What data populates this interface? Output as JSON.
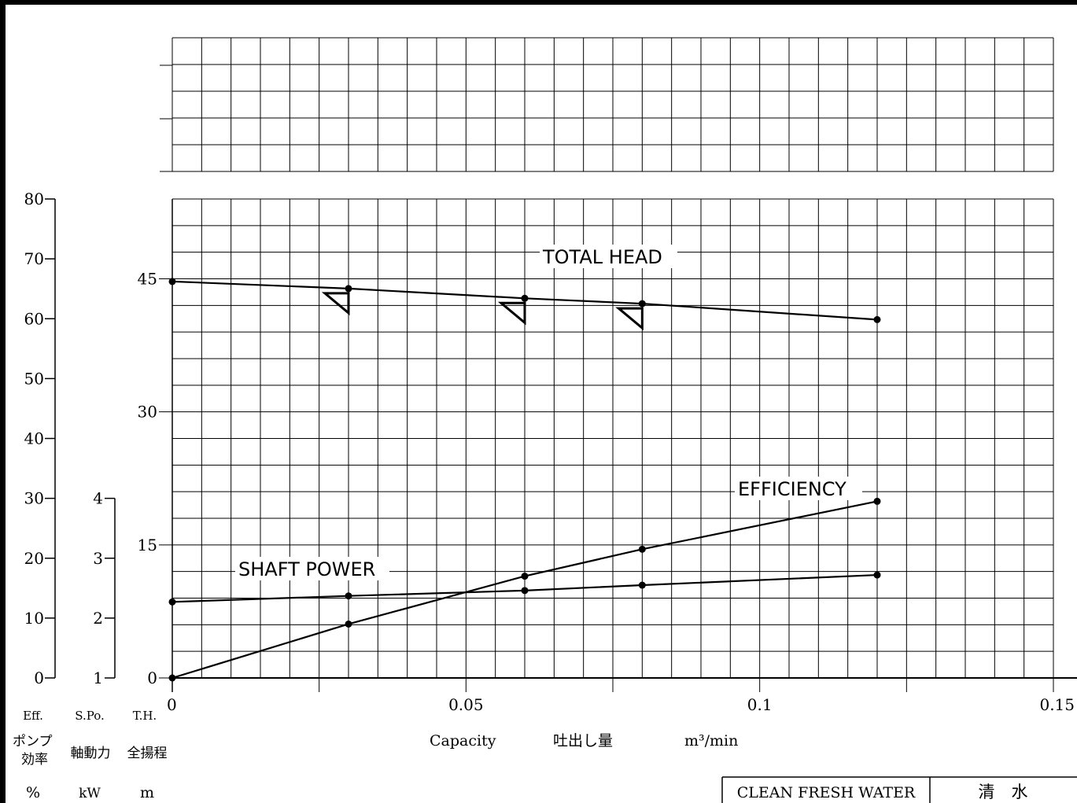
{
  "chart_data": {
    "type": "line",
    "x": [
      0,
      0.03,
      0.06,
      0.08,
      0.12
    ],
    "xlim": [
      0,
      0.15
    ],
    "x_ticks": [
      "0",
      "0.05",
      "0.1",
      "0.15"
    ],
    "axes": {
      "head": {
        "abbr": "T.H.",
        "name": "全揚程",
        "unit": "m",
        "ylim": [
          0,
          54
        ],
        "ticks": [
          "0",
          "15",
          "30",
          "45"
        ]
      },
      "power": {
        "abbr": "S.Po.",
        "name": "軸動力",
        "unit": "kW",
        "ylim": [
          1,
          4
        ],
        "ticks": [
          "1",
          "2",
          "3",
          "4"
        ]
      },
      "efficiency": {
        "abbr": "Eff.",
        "name": "ポンプ効率",
        "unit": "%",
        "ylim": [
          0,
          80
        ],
        "ticks": [
          "0",
          "10",
          "20",
          "30",
          "40",
          "50",
          "60",
          "70",
          "80"
        ]
      }
    },
    "series": [
      {
        "name": "TOTAL HEAD",
        "axis": "head",
        "values": [
          44.7,
          43.9,
          42.8,
          42.2,
          40.4
        ]
      },
      {
        "name": "EFFICIENCY",
        "axis": "efficiency",
        "values": [
          0,
          9.0,
          17.0,
          21.5,
          29.5
        ]
      },
      {
        "name": "SHAFT POWER",
        "axis": "power",
        "values": [
          2.27,
          2.37,
          2.46,
          2.55,
          2.72
        ]
      }
    ],
    "head_markers_x": [
      0.03,
      0.06,
      0.08
    ],
    "xlabel": {
      "en": "Capacity",
      "jp": "吐出し量",
      "unit": "m³/min"
    },
    "grid": true
  },
  "title_block": {
    "fluid_en": "CLEAN FRESH WATER",
    "fluid_jp": "清　水"
  }
}
